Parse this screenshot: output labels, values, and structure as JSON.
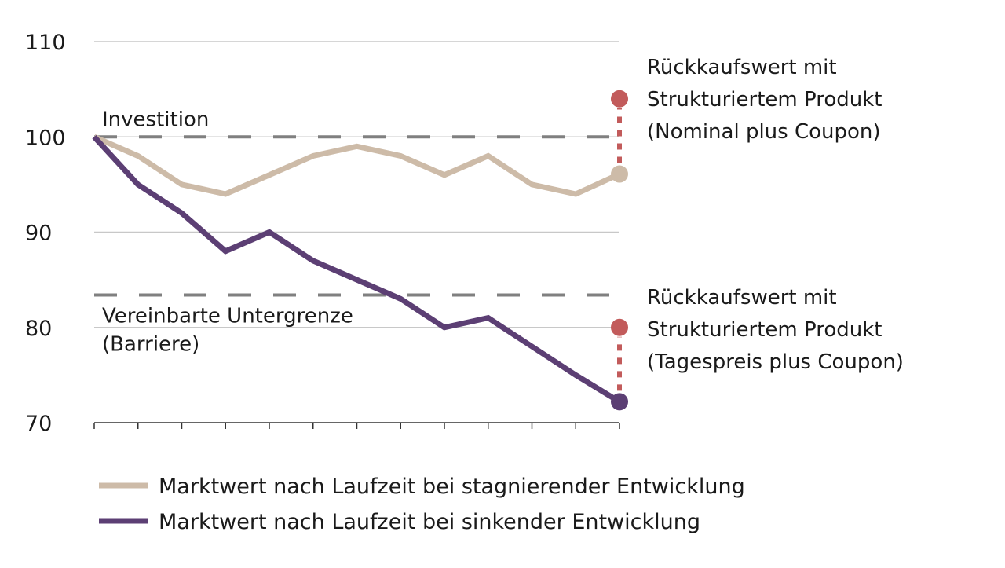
{
  "chart_data": {
    "type": "line",
    "title": "",
    "xlabel": "",
    "ylabel": "",
    "ylim": [
      70,
      110
    ],
    "yticks": [
      "70",
      "80",
      "90",
      "100",
      "110"
    ],
    "x": [
      0,
      1,
      2,
      3,
      4,
      5,
      6,
      7,
      8,
      9,
      10,
      11,
      12
    ],
    "grid": true,
    "series": [
      {
        "name": "Marktwert nach Laufzeit bei stagnierender Entwicklung",
        "color": "#cdbba8",
        "values": [
          100,
          98,
          95,
          94,
          96,
          98,
          99,
          98,
          96,
          98,
          95,
          94,
          96.1
        ]
      },
      {
        "name": "Marktwert nach Laufzeit bei sinkender Entwicklung",
        "color": "#5c3f74",
        "values": [
          100,
          95,
          92,
          88,
          90,
          87,
          85,
          83,
          80,
          81,
          78,
          75,
          72.2
        ]
      }
    ],
    "reference_lines": [
      {
        "value": 100,
        "label": "Investition",
        "color": "#808080"
      },
      {
        "value": 83.4,
        "label_lines": [
          "Vereinbarte Untergrenze",
          "(Barriere)"
        ],
        "color": "#808080"
      }
    ],
    "markers": [
      {
        "x": 12,
        "from": 96.1,
        "to": 104,
        "color": "#c25b5b",
        "label_lines": [
          "Rückkaufswert mit",
          "Strukturiertem Produkt",
          "(Nominal plus Coupon)"
        ]
      },
      {
        "x": 12,
        "from": 72.2,
        "to": 80,
        "color": "#c25b5b",
        "label_lines": [
          "Rückkaufswert mit",
          "Strukturiertem Produkt",
          "(Tagespreis plus Coupon)"
        ]
      }
    ],
    "legend": "bottom"
  }
}
